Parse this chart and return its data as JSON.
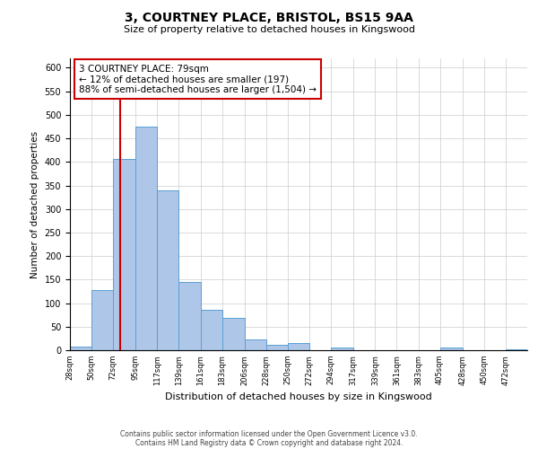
{
  "title": "3, COURTNEY PLACE, BRISTOL, BS15 9AA",
  "subtitle": "Size of property relative to detached houses in Kingswood",
  "xlabel": "Distribution of detached houses by size in Kingswood",
  "ylabel": "Number of detached properties",
  "bin_labels": [
    "28sqm",
    "50sqm",
    "72sqm",
    "95sqm",
    "117sqm",
    "139sqm",
    "161sqm",
    "183sqm",
    "206sqm",
    "228sqm",
    "250sqm",
    "272sqm",
    "294sqm",
    "317sqm",
    "339sqm",
    "361sqm",
    "383sqm",
    "405sqm",
    "428sqm",
    "450sqm",
    "472sqm"
  ],
  "bin_edges": [
    28,
    50,
    72,
    95,
    117,
    139,
    161,
    183,
    206,
    228,
    250,
    272,
    294,
    317,
    339,
    361,
    383,
    405,
    428,
    450,
    472
  ],
  "bar_heights": [
    8,
    128,
    406,
    475,
    340,
    145,
    85,
    68,
    22,
    12,
    16,
    0,
    6,
    0,
    0,
    0,
    0,
    5,
    0,
    0,
    2
  ],
  "bar_color": "#aec6e8",
  "bar_edgecolor": "#5a9fd4",
  "vline_x": 79,
  "vline_color": "#cc0000",
  "annotation_title": "3 COURTNEY PLACE: 79sqm",
  "annotation_line1": "← 12% of detached houses are smaller (197)",
  "annotation_line2": "88% of semi-detached houses are larger (1,504) →",
  "annotation_box_edgecolor": "#cc0000",
  "ylim": [
    0,
    620
  ],
  "yticks": [
    0,
    50,
    100,
    150,
    200,
    250,
    300,
    350,
    400,
    450,
    500,
    550,
    600
  ],
  "footer1": "Contains public sector information licensed under the Open Government Licence v3.0.",
  "footer2": "Contains HM Land Registry data © Crown copyright and database right 2024.",
  "bg_color": "#ffffff",
  "grid_color": "#cccccc"
}
